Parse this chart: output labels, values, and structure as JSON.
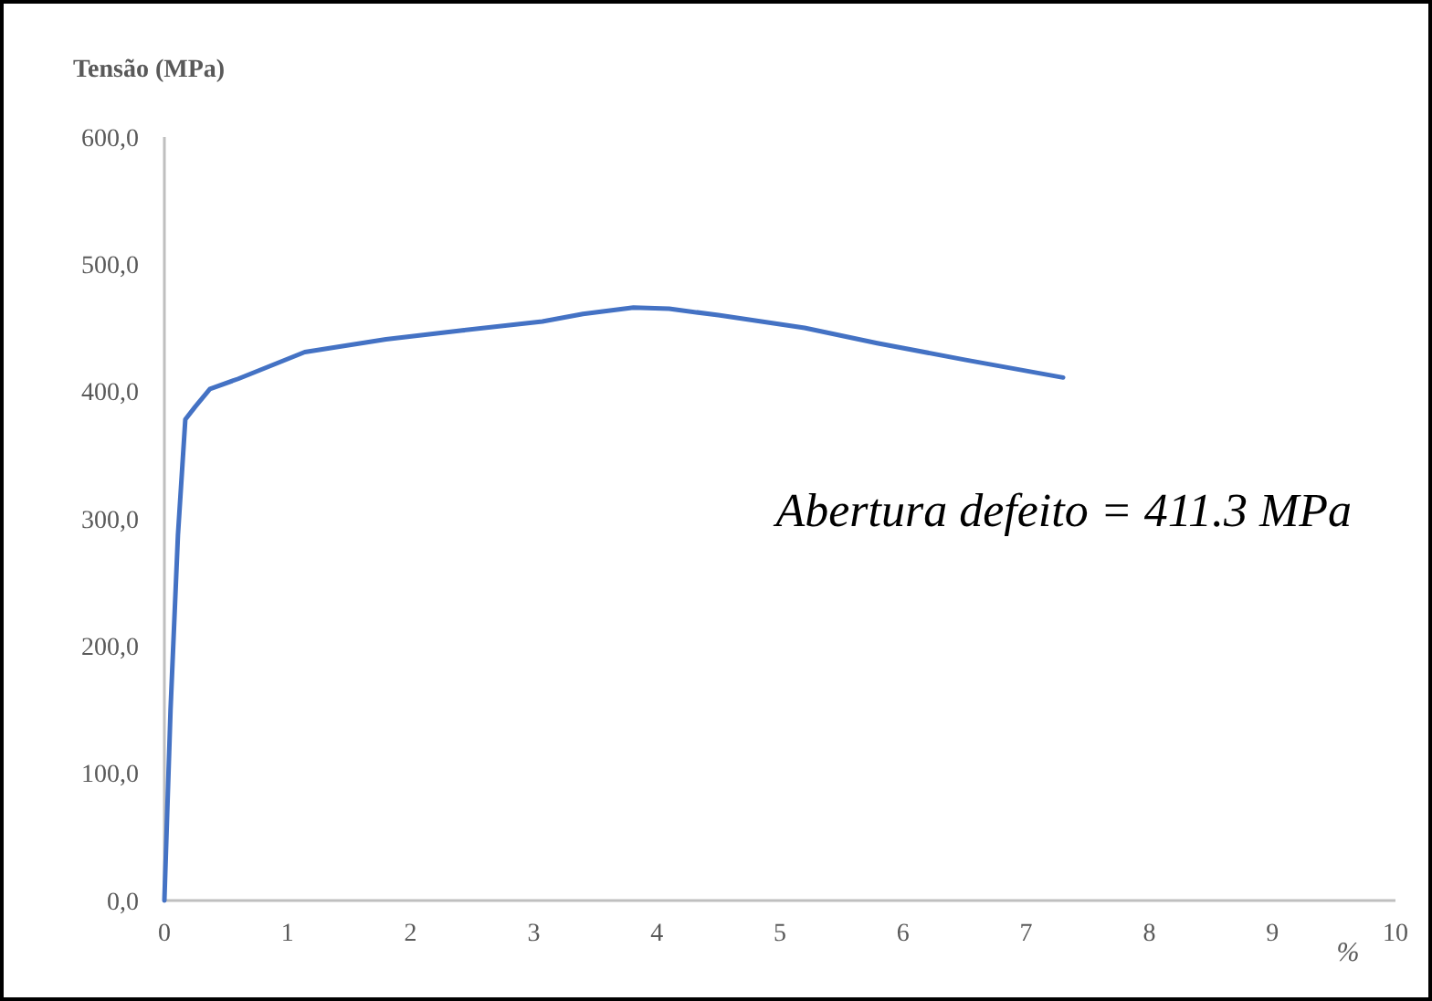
{
  "chart_data": {
    "type": "line",
    "ylabel": "Tensão (MPa)",
    "xlabel": "%",
    "annotations": [
      "Abertura defeito = 411.3 MPa"
    ],
    "series": [
      {
        "color": "#4472c4",
        "x": [
          0,
          0.05,
          0.11,
          0.17,
          0.25,
          0.37,
          0.6,
          1.14,
          1.8,
          2.42,
          3.07,
          3.4,
          3.81,
          4.1,
          4.5,
          5.2,
          5.79,
          6.5,
          7.3
        ],
        "values": [
          0,
          150,
          287,
          378,
          388,
          402,
          410,
          431,
          441,
          448,
          455,
          461,
          466,
          465,
          460,
          450,
          438,
          425,
          411
        ]
      }
    ],
    "xlim": [
      0,
      10
    ],
    "xticks": [
      0,
      1,
      2,
      3,
      4,
      5,
      6,
      7,
      8,
      9,
      10
    ],
    "ylim": [
      0,
      600
    ],
    "yticks": [
      {
        "value": 0,
        "label": "0,0"
      },
      {
        "value": 100,
        "label": "100,0"
      },
      {
        "value": 200,
        "label": "200,0"
      },
      {
        "value": 300,
        "label": "300,0"
      },
      {
        "value": 400,
        "label": "400,0"
      },
      {
        "value": 500,
        "label": "500,0"
      },
      {
        "value": 600,
        "label": "600,0"
      }
    ],
    "grid": false,
    "legend": false,
    "marker": "none",
    "line_style": "solid"
  }
}
